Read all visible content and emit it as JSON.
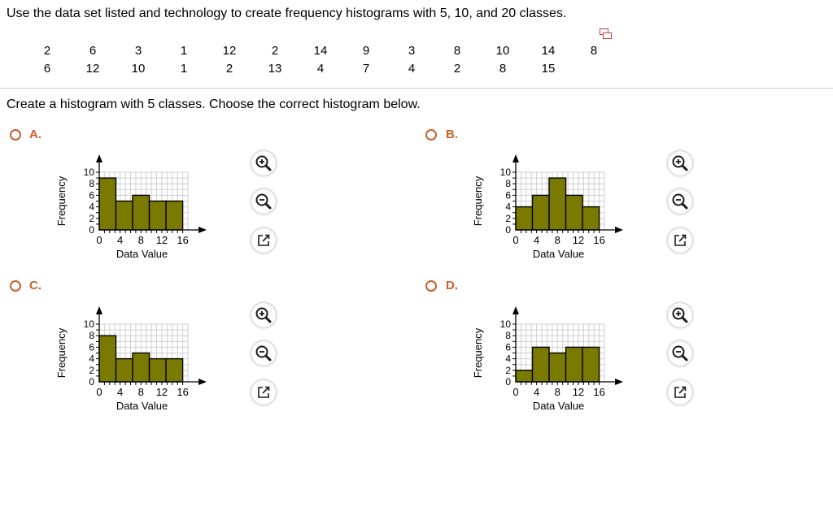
{
  "question": {
    "prompt": "Use the data set listed and technology to create frequency histograms with 5, 10, and 20 classes.",
    "data_rows": [
      [
        "2",
        "6",
        "3",
        "1",
        "12",
        "2",
        "14",
        "9",
        "3",
        "8",
        "10",
        "14",
        "8"
      ],
      [
        "6",
        "12",
        "10",
        "1",
        "2",
        "13",
        "4",
        "7",
        "4",
        "2",
        "8",
        "15"
      ]
    ],
    "sub_prompt": "Create a histogram with 5 classes. Choose the correct histogram below."
  },
  "options": [
    {
      "letter": "A."
    },
    {
      "letter": "B."
    },
    {
      "letter": "C."
    },
    {
      "letter": "D."
    }
  ],
  "chart_data": [
    {
      "type": "bar",
      "option": "A",
      "bin_width": 3.2,
      "x_start": 0,
      "values": [
        9,
        5,
        6,
        5,
        5
      ],
      "xlabel": "Data Value",
      "ylabel": "Frequency",
      "xticks": [
        "0",
        "4",
        "8",
        "12",
        "16"
      ],
      "yticks": [
        "0",
        "2",
        "4",
        "6",
        "8",
        "10"
      ],
      "xlim": [
        0,
        17
      ],
      "ylim": [
        0,
        10
      ],
      "grid": true,
      "bar_color": "#7b7a00"
    },
    {
      "type": "bar",
      "option": "B",
      "bin_width": 3.2,
      "x_start": 0,
      "values": [
        4,
        6,
        9,
        6,
        4
      ],
      "xlabel": "Data Value",
      "ylabel": "Frequency",
      "xticks": [
        "0",
        "4",
        "8",
        "12",
        "16"
      ],
      "yticks": [
        "0",
        "2",
        "4",
        "6",
        "8",
        "10"
      ],
      "xlim": [
        0,
        17
      ],
      "ylim": [
        0,
        10
      ],
      "grid": true,
      "bar_color": "#7b7a00"
    },
    {
      "type": "bar",
      "option": "C",
      "bin_width": 3.2,
      "x_start": 0,
      "values": [
        8,
        4,
        5,
        4,
        4
      ],
      "xlabel": "Data Value",
      "ylabel": "Frequency",
      "xticks": [
        "0",
        "4",
        "8",
        "12",
        "16"
      ],
      "yticks": [
        "0",
        "2",
        "4",
        "6",
        "8",
        "10"
      ],
      "xlim": [
        0,
        17
      ],
      "ylim": [
        0,
        10
      ],
      "grid": true,
      "bar_color": "#7b7a00"
    },
    {
      "type": "bar",
      "option": "D",
      "bin_width": 3.2,
      "x_start": 0,
      "values": [
        2,
        6,
        5,
        6,
        6
      ],
      "xlabel": "Data Value",
      "ylabel": "Frequency",
      "xticks": [
        "0",
        "4",
        "8",
        "12",
        "16"
      ],
      "yticks": [
        "0",
        "2",
        "4",
        "6",
        "8",
        "10"
      ],
      "xlim": [
        0,
        17
      ],
      "ylim": [
        0,
        10
      ],
      "grid": true,
      "bar_color": "#7b7a00"
    }
  ],
  "tools": {
    "icons": [
      "zoom-in-icon",
      "zoom-out-icon",
      "open-new-window-icon"
    ],
    "border_color": "#1a1a1a"
  }
}
